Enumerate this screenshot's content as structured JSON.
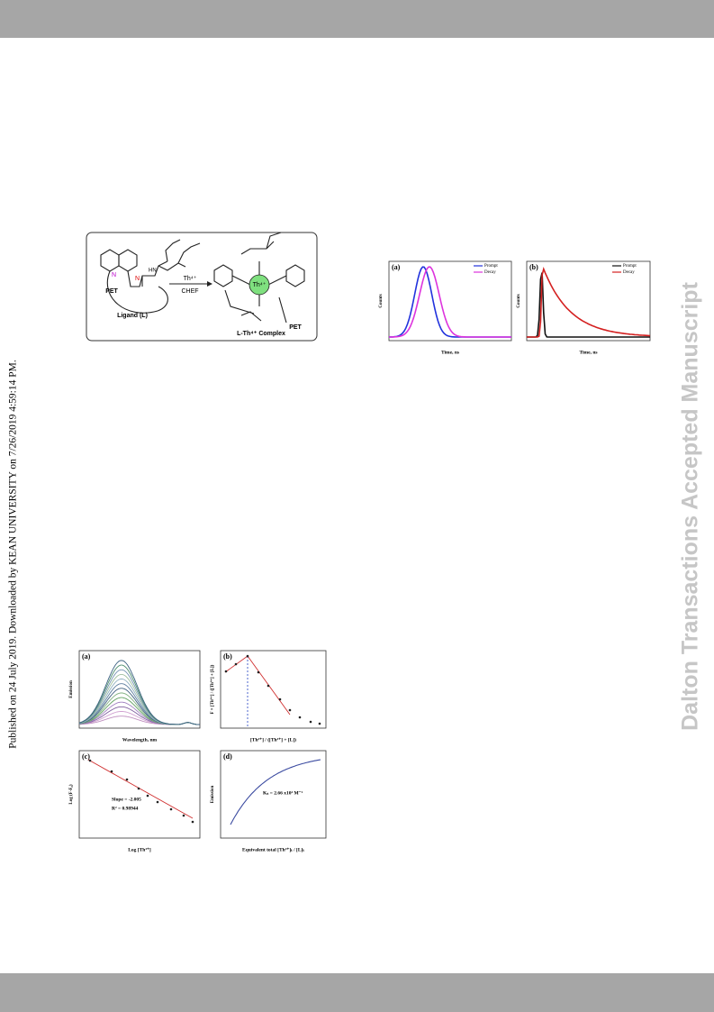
{
  "sidebar": {
    "published": "Published on 24 July 2019. Downloaded by KEAN UNIVERSITY on 7/26/2019 4:59:14 PM."
  },
  "watermark": "Dalton Transactions Accepted Manuscript",
  "scheme": {
    "ligand_label": "Ligand (L)",
    "reagent": "Th⁴⁺",
    "condition": "CHEF",
    "pet_left": "PET",
    "pet_right": "PET",
    "center_ion": "Th⁴⁺",
    "complex_label": "L-Th⁴⁺ Complex"
  },
  "lifetime_figure": {
    "panels": [
      {
        "label": "(a)",
        "legend": [
          "Prompt",
          "Decay"
        ],
        "y_label": "Counts",
        "x_label": "Time, ns"
      },
      {
        "label": "(b)",
        "legend": [
          "Prompt",
          "Decay"
        ],
        "y_label": "Counts",
        "x_label": "Time, ns"
      }
    ]
  },
  "titration_figure": {
    "panels": [
      {
        "label": "(a)",
        "x_label": "Wavelength, nm",
        "y_label": "Emission"
      },
      {
        "label": "(b)",
        "x_label": "[Th⁴⁺] / ([Th⁴⁺] + [L])",
        "y_label": "F × [Th⁴⁺] / ([Th⁴⁺] + [L])"
      },
      {
        "label": "(c)",
        "x_label": "Log [Th⁴⁺]",
        "y_label": "Log (F-F₀)",
        "annotations": [
          "Slope = -2.005",
          "R² = 0.98944"
        ]
      },
      {
        "label": "(d)",
        "x_label": "Equivalent total [Th⁴⁺]ₜ / [L]ₜ",
        "y_label": "Emission",
        "annotations": [
          "Kₛ = 2.66 x10⁴ M⁻¹"
        ]
      }
    ]
  }
}
